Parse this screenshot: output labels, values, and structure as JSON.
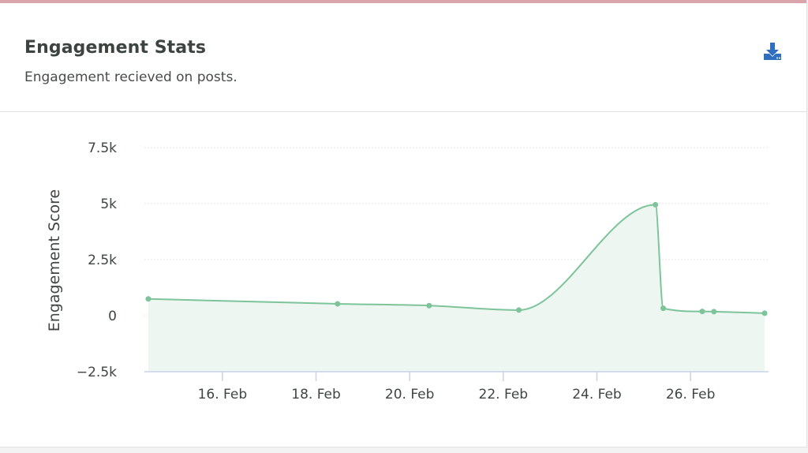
{
  "header": {
    "title": "Engagement Stats",
    "subtitle": "Engagement recieved on posts.",
    "download_icon": "download-icon"
  },
  "colors": {
    "accent_top": "#d9a5ab",
    "series": "#7dc49a",
    "area_fill": "#eef6f1",
    "download": "#2f6fbd"
  },
  "chart_data": {
    "type": "area",
    "ylabel": "Engagement Score",
    "y_ticks": [
      "7.5k",
      "5k",
      "2.5k",
      "0",
      "−2.5k"
    ],
    "y_tick_values": [
      7500,
      5000,
      2500,
      0,
      -2500
    ],
    "ylim": [
      -2500,
      7500
    ],
    "x_ticks": [
      "16. Feb",
      "18. Feb",
      "20. Feb",
      "22. Feb",
      "24. Feb",
      "26. Feb"
    ],
    "x_tick_dates": [
      "2024-02-16",
      "2024-02-18",
      "2024-02-20",
      "2024-02-22",
      "2024-02-24",
      "2024-02-26"
    ],
    "xlim": [
      "2024-02-14T08:00",
      "2024-02-27T16:00"
    ],
    "grid": true,
    "series": [
      {
        "points": [
          {
            "x": "2024-02-14T10:00",
            "y": 750
          },
          {
            "x": "2024-02-18T11:00",
            "y": 530
          },
          {
            "x": "2024-02-20T10:00",
            "y": 450
          },
          {
            "x": "2024-02-22T08:00",
            "y": 250
          },
          {
            "x": "2024-02-25T06:00",
            "y": 4950
          },
          {
            "x": "2024-02-25T10:00",
            "y": 330
          },
          {
            "x": "2024-02-26T06:00",
            "y": 190
          },
          {
            "x": "2024-02-26T12:00",
            "y": 180
          },
          {
            "x": "2024-02-27T14:00",
            "y": 110
          }
        ]
      }
    ]
  }
}
